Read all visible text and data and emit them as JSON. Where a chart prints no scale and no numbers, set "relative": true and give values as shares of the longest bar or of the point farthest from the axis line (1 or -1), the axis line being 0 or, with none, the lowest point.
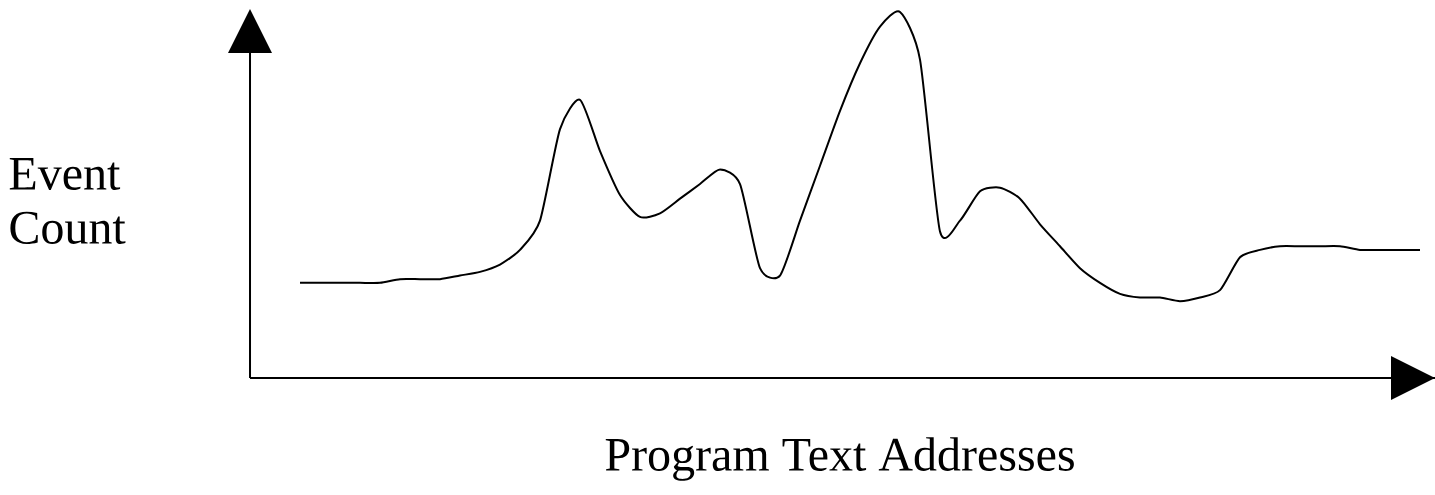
{
  "chart_data": {
    "type": "line",
    "relative": true,
    "xlabel": "Program Text Addresses",
    "ylabel": "Event Count",
    "color": "#000000",
    "categories": [
      null,
      null,
      null,
      null,
      null,
      null,
      null,
      null,
      null,
      null,
      null,
      null,
      null,
      null,
      null,
      null,
      null,
      null,
      null,
      null,
      null,
      null,
      null,
      null,
      null,
      null,
      null,
      null,
      null,
      null,
      null,
      null,
      null,
      null,
      null,
      null,
      null,
      null,
      null,
      null,
      null,
      null,
      null,
      null,
      null,
      null,
      null,
      null,
      null,
      null,
      null,
      null,
      null,
      null,
      null,
      null,
      null
    ],
    "values": [
      0.26,
      0.26,
      0.26,
      0.26,
      0.26,
      0.27,
      0.27,
      0.27,
      0.28,
      0.29,
      0.31,
      0.35,
      0.43,
      0.68,
      0.76,
      0.62,
      0.5,
      0.44,
      0.45,
      0.49,
      0.53,
      0.57,
      0.53,
      0.3,
      0.28,
      0.43,
      0.58,
      0.73,
      0.86,
      0.96,
      1.0,
      0.87,
      0.4,
      0.43,
      0.51,
      0.52,
      0.49,
      0.42,
      0.36,
      0.3,
      0.26,
      0.23,
      0.22,
      0.22,
      0.21,
      0.22,
      0.24,
      0.33,
      0.35,
      0.36,
      0.36,
      0.36,
      0.36,
      0.35,
      0.35,
      0.35,
      0.35
    ]
  }
}
